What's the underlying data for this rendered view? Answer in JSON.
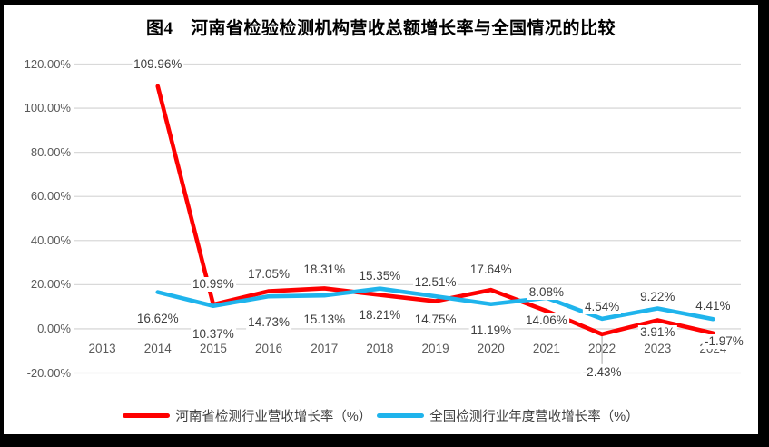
{
  "page": {
    "frame_color": "#000000",
    "panel_color": "#ffffff"
  },
  "chart_data": {
    "type": "line",
    "title": "图4　河南省检验检测机构营收总额增长率与全国情况的比较",
    "categories": [
      "2013",
      "2014",
      "2015",
      "2016",
      "2017",
      "2018",
      "2019",
      "2020",
      "2021",
      "2022",
      "2023",
      "2024"
    ],
    "y_axis": {
      "min": -20,
      "max": 120,
      "step": 20,
      "tick_labels": [
        "120.00%",
        "100.00%",
        "80.00%",
        "60.00%",
        "40.00%",
        "20.00%",
        "0.00%",
        "-20.00%"
      ]
    },
    "grid": true,
    "legend_position": "bottom",
    "series": [
      {
        "name": "河南省检测行业营收增长率（%）",
        "color": "#FE0000",
        "values": [
          null,
          109.96,
          10.99,
          17.05,
          18.31,
          15.35,
          12.51,
          17.64,
          8.08,
          -2.43,
          3.91,
          -1.97
        ],
        "labels": [
          "",
          "109.96%",
          "10.99%",
          "17.05%",
          "18.31%",
          "15.35%",
          "12.51%",
          "17.64%",
          "8.08%",
          "-2.43%",
          "3.91%",
          "-1.97%"
        ]
      },
      {
        "name": "全国检测行业年度营收增长率（%）",
        "color": "#1FB4EC",
        "values": [
          null,
          16.62,
          10.37,
          14.73,
          15.13,
          18.21,
          14.75,
          11.19,
          14.06,
          4.54,
          9.22,
          4.41
        ],
        "labels": [
          "",
          "16.62%",
          "10.37%",
          "14.73%",
          "15.13%",
          "18.21%",
          "14.75%",
          "11.19%",
          "14.06%",
          "4.54%",
          "9.22%",
          "4.41%"
        ]
      }
    ],
    "colors": {
      "gridline": "#D9D9D9",
      "axis_text": "#595959",
      "data_label_text": "#3F3F3F",
      "leader_line": "#A6A6A6"
    }
  }
}
